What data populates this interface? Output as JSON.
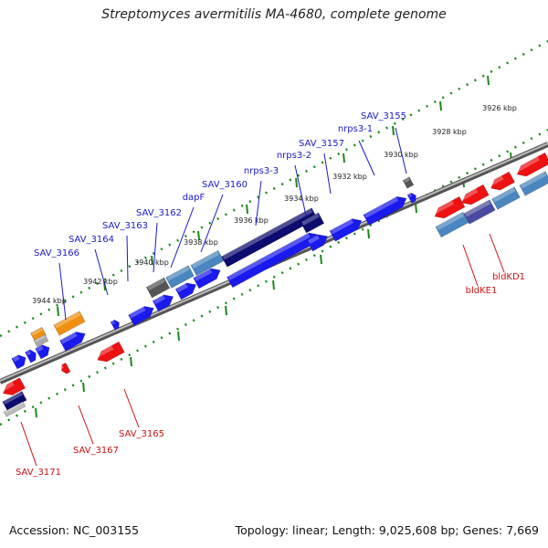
{
  "title": "Streptomyces avermitilis MA-4680, complete genome",
  "footer": {
    "accession": "Accession: NC_003155",
    "summary": "Topology: linear; Length: 9,025,608 bp; Genes: 7,669"
  },
  "colors": {
    "forward_label": "#1a1acc",
    "reverse_label": "#cc1111",
    "gene_blue": "#1a1aee",
    "gene_dark_blue": "#0b0b70",
    "gene_steel": "#4a86c0",
    "gene_red": "#ee1111",
    "gene_orange": "#f09010",
    "gene_gray": "#555555",
    "backbone": "#888888",
    "tick_green": "#1a8a1a"
  },
  "kbp_markers": [
    "3926 kbp",
    "3928 kbp",
    "3930 kbp",
    "3932 kbp",
    "3934 kbp",
    "3936 kbp",
    "3938 kbp",
    "3940 kbp",
    "3942 kbp",
    "3944 kbp"
  ],
  "forward_labels": [
    "SAV_3155",
    "nrps3-1",
    "SAV_3157",
    "nrps3-2",
    "nrps3-3",
    "SAV_3160",
    "dapF",
    "SAV_3162",
    "SAV_3163",
    "SAV_3164",
    "SAV_3166"
  ],
  "reverse_labels": [
    "bldKD1",
    "bldKE1",
    "SAV_3165",
    "SAV_3167",
    "SAV_3171"
  ]
}
